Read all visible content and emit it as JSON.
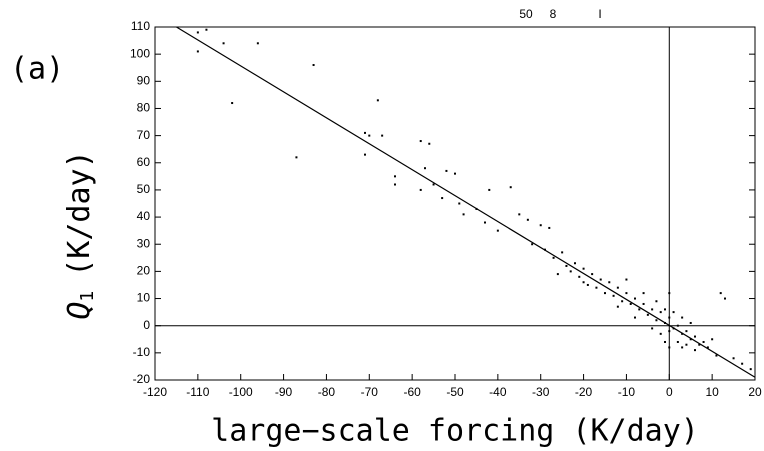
{
  "chart_data": {
    "type": "scatter",
    "panel_label": "(a)",
    "x_label": "large−scale forcing (K/day)",
    "y_label": "Q",
    "y_label_sub": "1",
    "y_label_unit": "(K/day)",
    "annotations": [
      "50",
      "8",
      "I"
    ],
    "color": "#000000",
    "x": [
      -110,
      -108,
      -104,
      -110,
      -102,
      -96,
      -83,
      -87,
      -68,
      -71,
      -70,
      -71,
      -67,
      -64,
      -64,
      -58,
      -57,
      -56,
      -58,
      -55,
      -53,
      -52,
      -50,
      -49,
      -48,
      -45,
      -43,
      -42,
      -40,
      -37,
      -35,
      -33,
      -32,
      -30,
      -29,
      -28,
      -27,
      -25,
      -24,
      -23,
      -22,
      -21,
      -20,
      -19,
      -18,
      -17,
      -16,
      -15,
      -14,
      -13,
      -12,
      -11,
      -10,
      -9,
      -8,
      -7,
      -6,
      -5,
      -4,
      -3,
      -2,
      -1,
      0,
      1,
      2,
      3,
      4,
      5,
      6,
      7,
      8,
      9,
      10,
      11,
      12,
      13,
      15,
      17,
      19,
      -26,
      -20,
      -12,
      -10,
      -8,
      -6,
      -4,
      -3,
      -2,
      -1,
      0,
      0,
      1,
      2,
      3,
      4,
      5,
      6,
      -1,
      0,
      3
    ],
    "values": [
      108,
      109,
      104,
      101,
      82,
      104,
      96,
      62,
      83,
      71,
      70,
      63,
      70,
      55,
      52,
      68,
      58,
      67,
      50,
      52,
      47,
      57,
      56,
      45,
      41,
      43,
      38,
      50,
      35,
      51,
      41,
      39,
      30,
      37,
      28,
      36,
      25,
      27,
      22,
      20,
      23,
      18,
      21,
      15,
      19,
      14,
      17,
      12,
      16,
      11,
      14,
      9,
      12,
      8,
      10,
      6,
      8,
      4,
      6,
      2,
      5,
      1,
      3,
      -1,
      0,
      -3,
      -2,
      -5,
      -4,
      -7,
      -6,
      -8,
      -5,
      -11,
      12,
      10,
      -12,
      -14,
      -16,
      19,
      16,
      7,
      17,
      3,
      12,
      -1,
      9,
      -3,
      6,
      -2,
      12,
      5,
      -6,
      3,
      -7,
      1,
      -9,
      -6,
      -8,
      -8
    ],
    "line": {
      "x": [
        -115,
        20
      ],
      "y": [
        110,
        -19
      ]
    },
    "hlines": [
      0
    ],
    "vlines": [
      0
    ],
    "xlim": [
      -120,
      20
    ],
    "ylim": [
      -20,
      110
    ],
    "xticks": [
      -120,
      -110,
      -100,
      -90,
      -80,
      -70,
      -60,
      -50,
      -40,
      -30,
      -20,
      -10,
      0,
      10,
      20
    ],
    "yticks": [
      -20,
      -10,
      0,
      10,
      20,
      30,
      40,
      50,
      60,
      70,
      80,
      90,
      100,
      110
    ]
  }
}
